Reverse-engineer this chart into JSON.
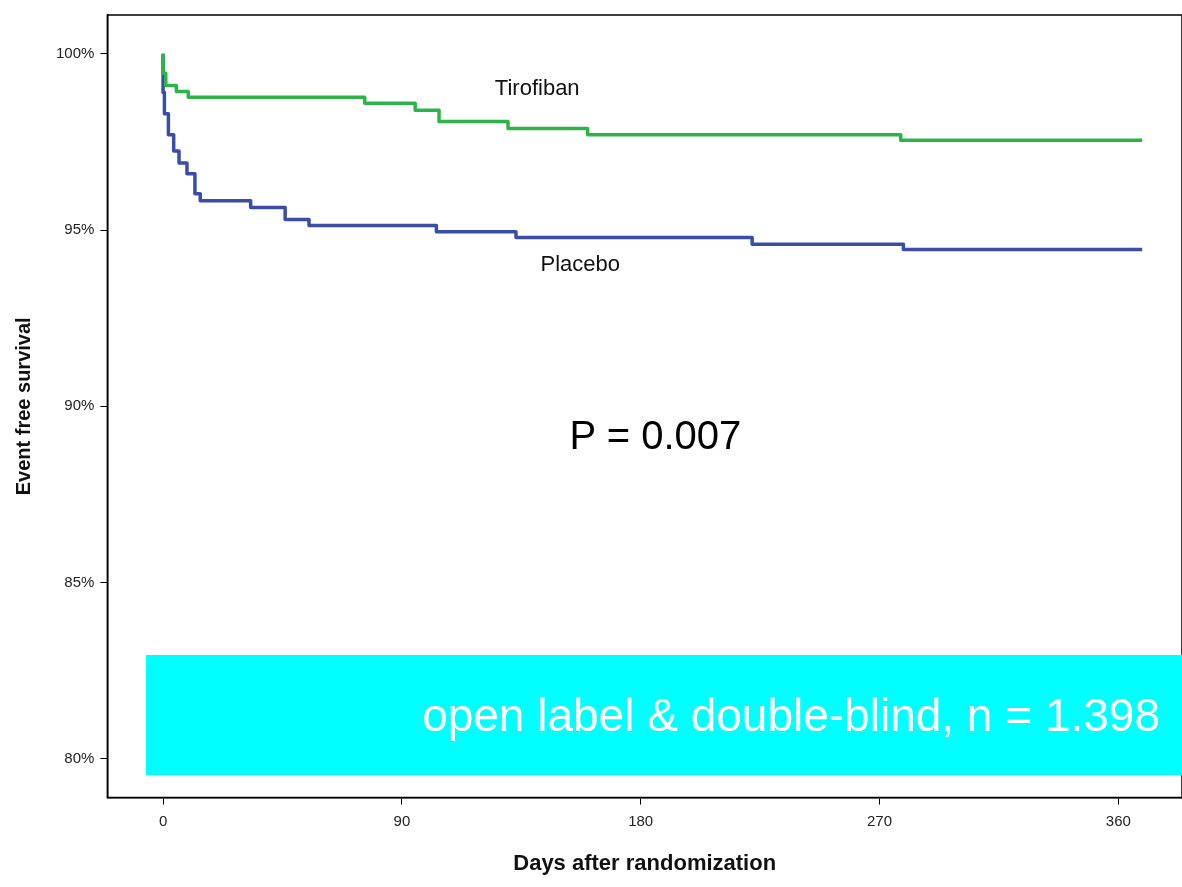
{
  "chart_data": {
    "type": "step",
    "xlabel": "Days after randomization",
    "ylabel": "Event free survival",
    "xlim": [
      -21,
      384
    ],
    "xticks": [
      0,
      90,
      180,
      270,
      360
    ],
    "ylim": [
      78.9,
      101.1
    ],
    "yticks": [
      {
        "value": 80,
        "label": "80%"
      },
      {
        "value": 85,
        "label": "85%"
      },
      {
        "value": 90,
        "label": "90%"
      },
      {
        "value": 95,
        "label": "95%"
      },
      {
        "value": 100,
        "label": "100%"
      }
    ],
    "legend": false,
    "marker": "none",
    "line_style": "solid",
    "series": [
      {
        "name": "Tirofiban",
        "color": "#2db34a",
        "x": [
          0,
          1,
          5,
          9.5,
          76,
          95,
          104,
          130,
          160,
          278,
          284,
          369
        ],
        "values": [
          100,
          99.45,
          99.1,
          98.93,
          98.77,
          98.6,
          98.4,
          98.08,
          97.88,
          97.7,
          97.55,
          97.55
        ]
      },
      {
        "name": "Placebo",
        "color": "#3a4ea6",
        "x": [
          0,
          0.5,
          2,
          4,
          6,
          9,
          12,
          14,
          33,
          46,
          55,
          103,
          133,
          222,
          279,
          282,
          369
        ],
        "values": [
          100,
          98.9,
          98.3,
          97.7,
          97.24,
          96.9,
          96.6,
          96.03,
          95.83,
          95.64,
          95.3,
          95.13,
          94.95,
          94.79,
          94.6,
          94.45,
          94.45
        ]
      }
    ],
    "annotations": [
      "P = 0.007",
      "open label & double-blind, n = 1.398"
    ]
  }
}
